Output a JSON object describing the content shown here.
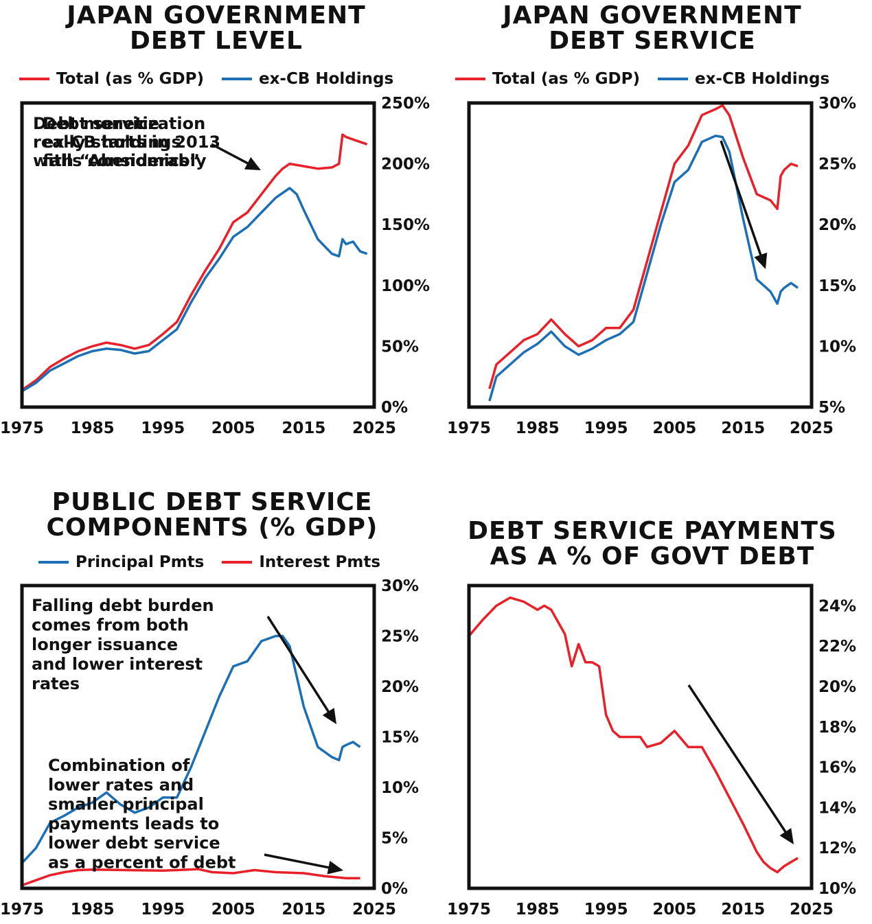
{
  "colors": {
    "red": "#e8202a",
    "blue": "#1d6fb5",
    "frame": "#111111",
    "arrow": "#111111"
  },
  "chart_data": [
    {
      "type": "line",
      "title_lines": [
        "JAPAN GOVERNMENT",
        "DEBT LEVEL"
      ],
      "legend": [
        "Total (as % GDP)",
        "ex-CB Holdings"
      ],
      "legend_placement": "top",
      "xlim": [
        1975,
        2025
      ],
      "x_ticks": [
        1975,
        1985,
        1995,
        2005,
        2015,
        2025
      ],
      "ylim": [
        0,
        250
      ],
      "y_ticks": [
        0,
        50,
        100,
        150,
        200,
        250
      ],
      "y_tick_labels": [
        "0%",
        "50%",
        "100%",
        "150%",
        "200%",
        "250%"
      ],
      "annotation_lines": [
        "Debt monetization",
        "really starts in 2013",
        "with “Abenomics”"
      ],
      "series": [
        {
          "name": "Total (as % GDP)",
          "color": "red",
          "x": [
            1975,
            1977,
            1979,
            1981,
            1983,
            1985,
            1987,
            1989,
            1991,
            1993,
            1995,
            1997,
            1999,
            2001,
            2003,
            2005,
            2007,
            2009,
            2011,
            2012,
            2013,
            2015,
            2017,
            2019,
            2020,
            2020.5,
            2021,
            2022,
            2023,
            2024
          ],
          "y": [
            14,
            22,
            33,
            40,
            46,
            50,
            53,
            51,
            48,
            51,
            60,
            70,
            92,
            112,
            130,
            152,
            160,
            175,
            190,
            196,
            200,
            198,
            196,
            197,
            200,
            224,
            222,
            220,
            218,
            216
          ]
        },
        {
          "name": "ex-CB Holdings",
          "color": "blue",
          "x": [
            1975,
            1977,
            1979,
            1981,
            1983,
            1985,
            1987,
            1989,
            1991,
            1993,
            1995,
            1997,
            1999,
            2001,
            2003,
            2005,
            2007,
            2009,
            2011,
            2013,
            2014,
            2015,
            2017,
            2019,
            2020,
            2020.5,
            2021,
            2022,
            2023,
            2024
          ],
          "y": [
            13,
            20,
            30,
            36,
            42,
            46,
            48,
            47,
            44,
            46,
            55,
            64,
            86,
            106,
            122,
            140,
            148,
            160,
            172,
            180,
            175,
            162,
            138,
            126,
            124,
            138,
            134,
            136,
            128,
            126
          ]
        }
      ]
    },
    {
      "type": "line",
      "title_lines": [
        "JAPAN GOVERNMENT",
        "DEBT SERVICE"
      ],
      "legend": [
        "Total (as % GDP)",
        "ex-CB Holdings"
      ],
      "legend_placement": "top",
      "xlim": [
        1975,
        2025
      ],
      "x_ticks": [
        1975,
        1985,
        1995,
        2005,
        2015,
        2025
      ],
      "ylim": [
        5,
        30
      ],
      "y_ticks": [
        5,
        10,
        15,
        20,
        25,
        30
      ],
      "y_tick_labels": [
        "5%",
        "10%",
        "15%",
        "20%",
        "25%",
        "30%"
      ],
      "annotation_lines": [
        "Debt service",
        "ex-CB holdings",
        "falls considerably"
      ],
      "series": [
        {
          "name": "Total (as % GDP)",
          "color": "red",
          "x": [
            1978,
            1979,
            1981,
            1983,
            1985,
            1987,
            1989,
            1991,
            1993,
            1995,
            1997,
            1999,
            2001,
            2003,
            2005,
            2007,
            2009,
            2011,
            2012,
            2013,
            2015,
            2017,
            2019,
            2020,
            2020.5,
            2021,
            2022,
            2023
          ],
          "y": [
            6.5,
            8.5,
            9.5,
            10.5,
            11,
            12.2,
            11,
            10,
            10.5,
            11.5,
            11.5,
            13,
            17,
            21,
            25,
            26.5,
            29,
            29.5,
            29.8,
            29,
            25.5,
            22.5,
            22,
            21.3,
            24,
            24.5,
            25,
            24.8
          ]
        },
        {
          "name": "ex-CB Holdings",
          "color": "blue",
          "x": [
            1978,
            1979,
            1981,
            1983,
            1985,
            1987,
            1989,
            1991,
            1993,
            1995,
            1997,
            1999,
            2001,
            2003,
            2005,
            2007,
            2009,
            2011,
            2012,
            2013,
            2015,
            2017,
            2019,
            2020,
            2020.5,
            2021,
            2022,
            2023
          ],
          "y": [
            5.5,
            7.5,
            8.5,
            9.5,
            10.2,
            11.2,
            10,
            9.3,
            9.8,
            10.5,
            11,
            12,
            16,
            20,
            23.5,
            24.5,
            26.8,
            27.3,
            27.2,
            26,
            20.5,
            15.5,
            14.5,
            13.5,
            14.5,
            14.8,
            15.2,
            14.8
          ]
        }
      ]
    },
    {
      "type": "line",
      "title_lines": [
        "PUBLIC DEBT SERVICE",
        "COMPONENTS (% GDP)"
      ],
      "legend": [
        "Principal Pmts",
        "Interest Pmts"
      ],
      "legend_placement": "top",
      "xlim": [
        1975,
        2025
      ],
      "x_ticks": [
        1975,
        1985,
        1995,
        2005,
        2015,
        2025
      ],
      "ylim": [
        0,
        30
      ],
      "y_ticks": [
        0,
        5,
        10,
        15,
        20,
        25,
        30
      ],
      "y_tick_labels": [
        "0%",
        "5%",
        "10%",
        "15%",
        "20%",
        "25%",
        "30%"
      ],
      "annotation_lines": [
        "Falling debt burden",
        "comes from both",
        "longer issuance",
        "and lower interest",
        "rates"
      ],
      "series": [
        {
          "name": "Principal Pmts",
          "color": "blue",
          "x": [
            1975,
            1977,
            1979,
            1981,
            1983,
            1985,
            1987,
            1989,
            1991,
            1993,
            1995,
            1997,
            1999,
            2001,
            2003,
            2005,
            2007,
            2009,
            2011,
            2012,
            2013,
            2015,
            2017,
            2019,
            2020,
            2020.5,
            2021,
            2022,
            2023
          ],
          "y": [
            2.5,
            4,
            6.5,
            7.2,
            8,
            8.5,
            9.5,
            8.3,
            7.5,
            8,
            9,
            9,
            12,
            15.5,
            19,
            22,
            22.5,
            24.5,
            25,
            25,
            24,
            18,
            14,
            13,
            12.7,
            14,
            14.2,
            14.5,
            14
          ]
        },
        {
          "name": "Interest Pmts",
          "color": "red",
          "x": [
            1975,
            1977,
            1979,
            1981,
            1983,
            1985,
            1990,
            1995,
            2000,
            2002,
            2005,
            2008,
            2011,
            2015,
            2018,
            2021,
            2023
          ],
          "y": [
            0.3,
            0.8,
            1.3,
            1.6,
            1.8,
            1.85,
            1.8,
            1.75,
            1.9,
            1.6,
            1.5,
            1.8,
            1.6,
            1.5,
            1.2,
            1.0,
            1.0
          ]
        }
      ]
    },
    {
      "type": "line",
      "title_lines": [
        "DEBT SERVICE PAYMENTS",
        "AS A % OF GOVT DEBT"
      ],
      "legend": [],
      "xlim": [
        1975,
        2025
      ],
      "x_ticks": [
        1975,
        1985,
        1995,
        2005,
        2015,
        2025
      ],
      "ylim": [
        10,
        25
      ],
      "y_ticks": [
        10,
        12,
        14,
        16,
        18,
        20,
        22,
        24
      ],
      "y_tick_labels": [
        "10%",
        "12%",
        "14%",
        "16%",
        "18%",
        "20%",
        "22%",
        "24%"
      ],
      "annotation_lines": [
        "Combination of",
        "lower rates and",
        "smaller principal",
        "payments leads to",
        "lower debt service",
        "as a percent of debt"
      ],
      "series": [
        {
          "name": "",
          "color": "red",
          "x": [
            1975,
            1977,
            1979,
            1981,
            1983,
            1985,
            1986,
            1987,
            1989,
            1990,
            1991,
            1992,
            1993,
            1994,
            1995,
            1996,
            1997,
            1998,
            2000,
            2001,
            2003,
            2005,
            2007,
            2009,
            2011,
            2013,
            2015,
            2017,
            2018,
            2019,
            2020,
            2021,
            2022,
            2023
          ],
          "y": [
            22.5,
            23.3,
            24,
            24.4,
            24.2,
            23.8,
            24,
            23.8,
            22.6,
            21,
            22.1,
            21.2,
            21.2,
            21,
            18.6,
            17.8,
            17.5,
            17.5,
            17.5,
            17,
            17.2,
            17.8,
            17,
            17,
            15.8,
            14.5,
            13.2,
            11.8,
            11.3,
            11,
            10.8,
            11.1,
            11.3,
            11.5
          ]
        }
      ]
    }
  ]
}
